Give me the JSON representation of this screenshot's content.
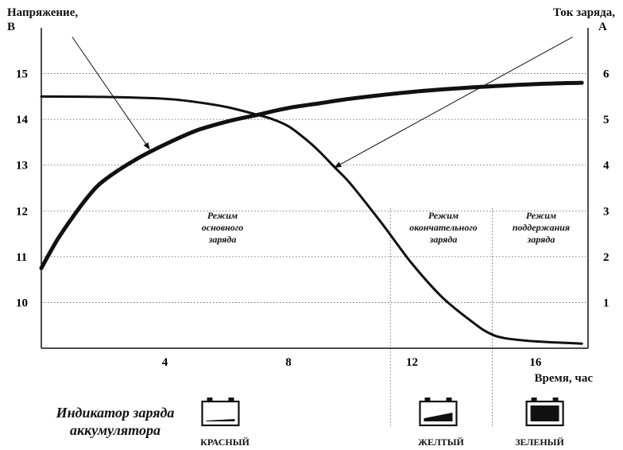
{
  "chart_data": {
    "type": "line",
    "title": "",
    "ylabel_left": "Напряжение,",
    "ylabel_left_unit": "В",
    "ylabel_right": "Ток заряда,",
    "ylabel_right_unit": "А",
    "xlabel": "Время, час",
    "x_ticks": [
      4,
      8,
      12,
      16
    ],
    "y_left_ticks": [
      10,
      11,
      12,
      13,
      14,
      15
    ],
    "y_right_ticks": [
      1,
      2,
      3,
      4,
      5,
      6
    ],
    "xlim": [
      0,
      17.7
    ],
    "ylim_left": [
      9,
      16
    ],
    "ylim_right": [
      0,
      7
    ],
    "grid": "horizontal-dotted",
    "series": [
      {
        "axis": "left",
        "x": [
          0,
          0.5,
          1,
          1.5,
          2,
          3,
          4,
          5,
          6,
          7,
          8,
          9,
          10,
          12,
          14,
          16,
          17.5
        ],
        "y": [
          10.75,
          11.35,
          11.85,
          12.3,
          12.65,
          13.1,
          13.45,
          13.75,
          13.95,
          14.1,
          14.25,
          14.35,
          14.45,
          14.6,
          14.7,
          14.77,
          14.8
        ]
      },
      {
        "axis": "right",
        "x": [
          0,
          2,
          4,
          5,
          6,
          7,
          7.5,
          8,
          8.5,
          9,
          9.5,
          10,
          11,
          12,
          13,
          14,
          14.5,
          15,
          16,
          17.5
        ],
        "y": [
          5.5,
          5.49,
          5.45,
          5.38,
          5.27,
          5.1,
          5.0,
          4.85,
          4.6,
          4.3,
          3.95,
          3.6,
          2.75,
          1.85,
          1.1,
          0.55,
          0.33,
          0.22,
          0.15,
          0.1
        ]
      }
    ],
    "regions": [
      {
        "x_end": 11.3,
        "label": "Режим\nосновного\nзаряда"
      },
      {
        "x_end": 14.6,
        "label": "Режим\nокончательного\nзаряда"
      },
      {
        "x_end": 17.7,
        "label": "Режим\nподдержания\nзаряда"
      }
    ],
    "annotations": [
      {
        "points_to": "left",
        "from_x": 1.0,
        "from_y_left": 15.8,
        "to_x": 3.5,
        "to_y_left": 13.35
      },
      {
        "points_to": "right",
        "from_x": 17.2,
        "from_y_left": 15.8,
        "to_x": 9.5,
        "to_y_left": 12.95
      }
    ]
  },
  "indicator": {
    "title": "Индикатор заряда\nаккумулятора",
    "states": [
      {
        "label": "КРАСНЫЙ",
        "fill": 0.15,
        "x": 5.8
      },
      {
        "label": "ЖЕЛТЫЙ",
        "fill": 0.55,
        "x": 12.85
      },
      {
        "label": "ЗЕЛЕНЫЙ",
        "fill": 1.0,
        "x": 16.3
      }
    ]
  }
}
